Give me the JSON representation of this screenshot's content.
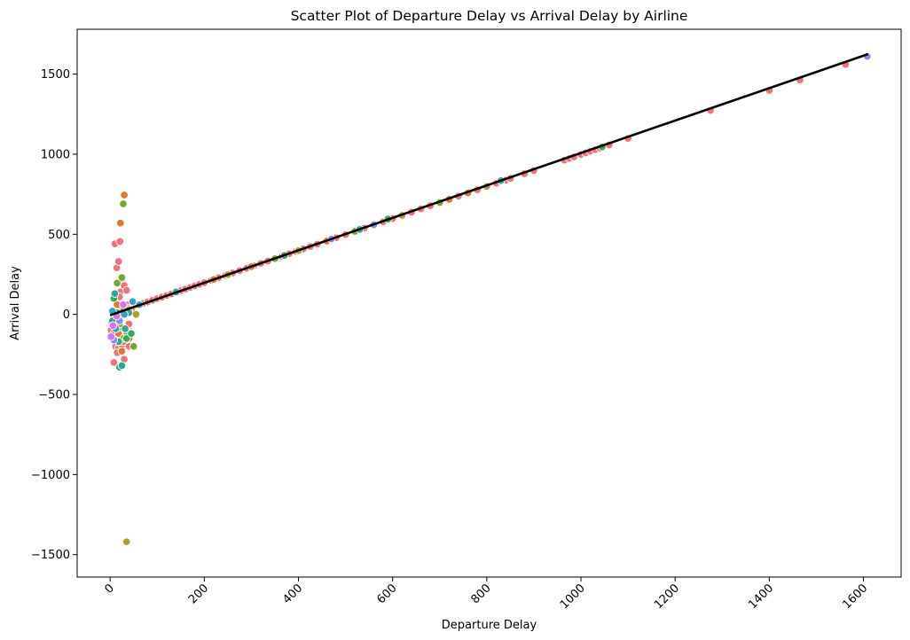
{
  "chart_data": {
    "type": "scatter",
    "title": "Scatter Plot of Departure Delay vs Arrival Delay by Airline",
    "xlabel": "Departure Delay",
    "ylabel": "Arrival Delay",
    "xlim": [
      -70,
      1680
    ],
    "ylim": [
      -1640,
      1780
    ],
    "xticks": [
      0,
      200,
      400,
      600,
      800,
      1000,
      1200,
      1400,
      1600
    ],
    "yticks": [
      -1500,
      -1000,
      -500,
      0,
      500,
      1000,
      1500
    ],
    "ytick_labels": [
      "−1500",
      "−1000",
      "−500",
      "0",
      "500",
      "1000",
      "1500"
    ],
    "xtick_rotation_deg": 45,
    "grid": false,
    "legend": "none",
    "palette": [
      "#f07379",
      "#e5752e",
      "#b69c2f",
      "#75a832",
      "#36a85a",
      "#33a597",
      "#37a0c0",
      "#8b8af5",
      "#db6ff0",
      "#f26aaa"
    ],
    "trend_line": {
      "x": [
        0,
        1610
      ],
      "y": [
        -5,
        1625
      ],
      "color": "#000000"
    },
    "series": [
      {
        "name": "",
        "color": "#f07379",
        "x": [
          2,
          5,
          8,
          10,
          12,
          15,
          18,
          20,
          22,
          25,
          28,
          30,
          32,
          35,
          38,
          40,
          3,
          6,
          9,
          13,
          16,
          19,
          24,
          27,
          31,
          36,
          10,
          14,
          18,
          21,
          26,
          30,
          22,
          8,
          15,
          30,
          40,
          12,
          20,
          35,
          25,
          42,
          50,
          60,
          70,
          80,
          90,
          100,
          110,
          120,
          130,
          140,
          150,
          160,
          170,
          180,
          190,
          200,
          215,
          230,
          245,
          260,
          275,
          290,
          305,
          320,
          335,
          350,
          365,
          380,
          395,
          410,
          425,
          440,
          460,
          480,
          500,
          520,
          540,
          560,
          580,
          600,
          620,
          640,
          660,
          680,
          700,
          720,
          740,
          760,
          780,
          800,
          820,
          840,
          850,
          880,
          900,
          965,
          975,
          985,
          1000,
          1010,
          1020,
          1030,
          1040,
          1060,
          1100,
          1275,
          1400,
          1465,
          1562
        ],
        "y": [
          -100,
          -150,
          -120,
          -180,
          -200,
          -140,
          -210,
          -160,
          -130,
          -190,
          -170,
          -120,
          -150,
          -100,
          -80,
          -60,
          -50,
          -30,
          -10,
          0,
          10,
          20,
          30,
          40,
          50,
          60,
          440,
          290,
          330,
          455,
          200,
          180,
          140,
          -300,
          -240,
          -280,
          -200,
          90,
          110,
          150,
          25,
          40,
          48,
          58,
          68,
          78,
          88,
          98,
          108,
          118,
          128,
          138,
          148,
          158,
          168,
          178,
          188,
          198,
          213,
          228,
          243,
          258,
          273,
          288,
          303,
          318,
          333,
          348,
          363,
          378,
          393,
          408,
          423,
          438,
          458,
          478,
          498,
          518,
          538,
          558,
          578,
          598,
          618,
          638,
          658,
          678,
          698,
          718,
          738,
          758,
          778,
          798,
          818,
          838,
          848,
          878,
          898,
          963,
          973,
          983,
          998,
          1008,
          1018,
          1028,
          1038,
          1058,
          1098,
          1273,
          1398,
          1463,
          1560
        ]
      },
      {
        "name": "",
        "color": "#e5752e",
        "x": [
          30,
          22,
          10,
          18,
          25,
          35,
          40,
          28,
          15,
          45,
          220,
          300,
          460,
          720,
          760
        ],
        "y": [
          745,
          570,
          -50,
          -120,
          -230,
          -100,
          -150,
          20,
          60,
          30,
          218,
          298,
          458,
          718,
          758
        ]
      },
      {
        "name": "",
        "color": "#b69c2f",
        "x": [
          35,
          20,
          28,
          40,
          15,
          55,
          250,
          400,
          620,
          800
        ],
        "y": [
          -1420,
          -80,
          -150,
          30,
          10,
          0,
          248,
          398,
          618,
          798
        ]
      },
      {
        "name": "",
        "color": "#75a832",
        "x": [
          28,
          15,
          25,
          50,
          12,
          20,
          35,
          350,
          520,
          700
        ],
        "y": [
          690,
          195,
          230,
          -200,
          -20,
          -60,
          -110,
          348,
          518,
          698
        ]
      },
      {
        "name": "",
        "color": "#36a85a",
        "x": [
          20,
          35,
          8,
          45,
          15,
          370,
          590,
          1045
        ],
        "y": [
          -330,
          -150,
          100,
          -120,
          10,
          368,
          595,
          1045
        ]
      },
      {
        "name": "",
        "color": "#33a597",
        "x": [
          10,
          25,
          5,
          40,
          18,
          32,
          140,
          530,
          830
        ],
        "y": [
          130,
          -320,
          -40,
          10,
          -170,
          -90,
          140,
          530,
          835
        ]
      },
      {
        "name": "",
        "color": "#37a0c0",
        "x": [
          5,
          30,
          48,
          62,
          12
        ],
        "y": [
          20,
          0,
          80,
          60,
          -90
        ]
      },
      {
        "name": "",
        "color": "#8b8af5",
        "x": [
          8,
          20,
          470,
          560,
          1608
        ],
        "y": [
          -160,
          -40,
          470,
          560,
          1610
        ]
      },
      {
        "name": "",
        "color": "#db6ff0",
        "x": [
          2,
          6,
          28,
          14
        ],
        "y": [
          -140,
          -70,
          60,
          -10
        ]
      }
    ]
  }
}
